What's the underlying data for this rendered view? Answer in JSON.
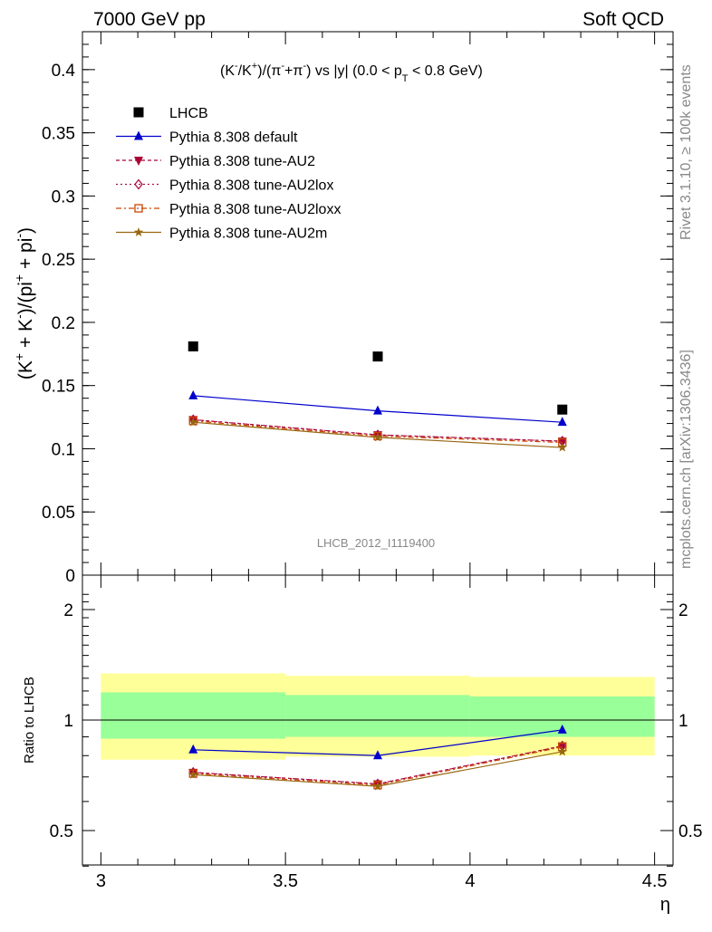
{
  "header": {
    "left": "7000 GeV pp",
    "right": "Soft QCD"
  },
  "side_text": {
    "rivet": "Rivet 3.1.10, ≥ 100k events",
    "mcplots": "mcplots.cern.ch [arXiv:1306.3436]"
  },
  "watermark": "LHCB_2012_I1119400",
  "chart_data": [
    {
      "type": "line",
      "title_parts": {
        "a": "(K",
        "a_sup": "-",
        "b": "/K",
        "b_sup": "+",
        "c": ")/(π",
        "c_sup": "-",
        "d": "+π",
        "d_sup": "-",
        "e": ") vs |y| (0.0 < p",
        "e_sub": "T",
        "f": " < 0.8 GeV)"
      },
      "ylabel_parts": {
        "a": "(K",
        "a_sup": "+",
        "b": " + K",
        "b_sup": "-",
        "c": ")/(pi",
        "c_sup": "+",
        "d": " + pi",
        "d_sup": "-",
        "e": ")"
      },
      "ylim": [
        0,
        0.43
      ],
      "xlim": [
        2.95,
        4.55
      ],
      "yticks": [
        "0",
        "0.05",
        "0.1",
        "0.15",
        "0.2",
        "0.25",
        "0.3",
        "0.35",
        "0.4"
      ],
      "legend_position": "top-left",
      "x": [
        3.25,
        3.75,
        4.25
      ],
      "series": [
        {
          "name": "LHCB",
          "color": "#000000",
          "marker": "square",
          "values": [
            0.181,
            0.173,
            0.131
          ]
        },
        {
          "name": "Pythia 8.308 default",
          "color": "#0000cc",
          "marker": "triangle-up",
          "values": [
            0.142,
            0.13,
            0.121
          ]
        },
        {
          "name": "Pythia 8.308 tune-AU2",
          "color": "#aa0033",
          "marker": "triangle-down",
          "values": [
            0.123,
            0.111,
            0.106
          ]
        },
        {
          "name": "Pythia 8.308 tune-AU2lox",
          "color": "#aa1144",
          "marker": "diamond-open",
          "values": [
            0.123,
            0.111,
            0.106
          ]
        },
        {
          "name": "Pythia 8.308 tune-AU2loxx",
          "color": "#cc4400",
          "marker": "square-open",
          "values": [
            0.122,
            0.11,
            0.105
          ]
        },
        {
          "name": "Pythia 8.308 tune-AU2m",
          "color": "#996611",
          "marker": "star",
          "values": [
            0.121,
            0.109,
            0.101
          ]
        }
      ]
    },
    {
      "type": "line",
      "ylabel": "Ratio to LHCB",
      "xlabel": "η",
      "ylim": [
        0.35,
        2.28
      ],
      "xlim": [
        2.95,
        4.55
      ],
      "yticks": [
        "0.5",
        "1",
        "2"
      ],
      "xticks": [
        "3",
        "3.5",
        "4",
        "4.5"
      ],
      "x": [
        3.25,
        3.75,
        4.25
      ],
      "bands": [
        {
          "x": [
            3.0,
            3.5
          ],
          "yellow": [
            0.78,
            1.34
          ],
          "green": [
            0.89,
            1.19
          ]
        },
        {
          "x": [
            3.5,
            4.0
          ],
          "yellow": [
            0.795,
            1.32
          ],
          "green": [
            0.9,
            1.17
          ]
        },
        {
          "x": [
            4.0,
            4.5
          ],
          "yellow": [
            0.8,
            1.31
          ],
          "green": [
            0.9,
            1.16
          ]
        }
      ],
      "series": [
        {
          "name": "Pythia 8.308 default",
          "color": "#0000cc",
          "marker": "triangle-up",
          "values": [
            0.83,
            0.8,
            0.94
          ]
        },
        {
          "name": "Pythia 8.308 tune-AU2",
          "color": "#aa0033",
          "marker": "triangle-down",
          "values": [
            0.72,
            0.67,
            0.85
          ]
        },
        {
          "name": "Pythia 8.308 tune-AU2lox",
          "color": "#aa1144",
          "marker": "diamond-open",
          "values": [
            0.72,
            0.67,
            0.85
          ]
        },
        {
          "name": "Pythia 8.308 tune-AU2loxx",
          "color": "#cc4400",
          "marker": "square-open",
          "values": [
            0.715,
            0.665,
            0.845
          ]
        },
        {
          "name": "Pythia 8.308 tune-AU2m",
          "color": "#996611",
          "marker": "star",
          "values": [
            0.71,
            0.66,
            0.82
          ]
        }
      ]
    }
  ]
}
